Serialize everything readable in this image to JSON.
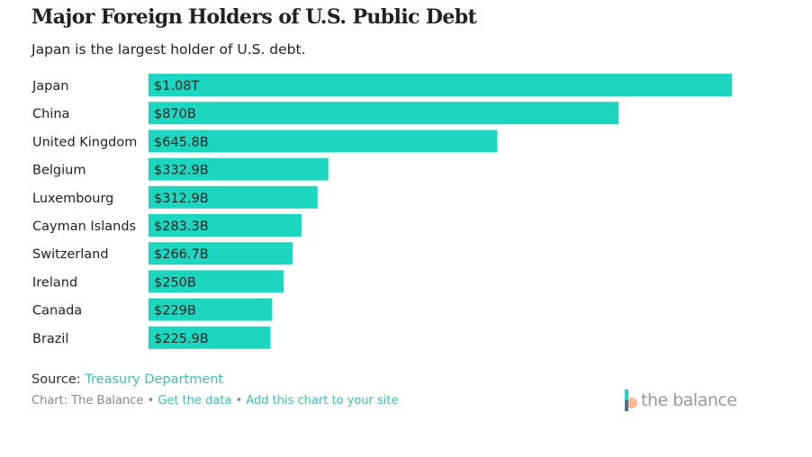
{
  "title": "Major Foreign Holders of U.S. Public Debt",
  "subtitle": "Japan is the largest holder of U.S. debt.",
  "chart_data": {
    "type": "bar",
    "orientation": "horizontal",
    "categories": [
      "Japan",
      "China",
      "United Kingdom",
      "Belgium",
      "Luxembourg",
      "Cayman Islands",
      "Switzerland",
      "Ireland",
      "Canada",
      "Brazil"
    ],
    "values": [
      1080,
      870,
      645.8,
      332.9,
      312.9,
      283.3,
      266.7,
      250,
      229,
      225.9
    ],
    "unit": "billions USD",
    "data_labels": [
      "$1.08T",
      "$870B",
      "$645.8B",
      "$332.9B",
      "$312.9B",
      "$283.3B",
      "$266.7B",
      "$250B",
      "$229B",
      "$225.9B"
    ],
    "xlim": [
      0,
      1080
    ],
    "grid": false,
    "bar_color": "#1dd6bf"
  },
  "footer": {
    "source_label": "Source:",
    "source_link": "Treasury Department",
    "credit": "Chart: The Balance",
    "sep": "•",
    "get_data": "Get the data",
    "add_chart": "Add this chart to your site",
    "logo_text": "the balance"
  }
}
